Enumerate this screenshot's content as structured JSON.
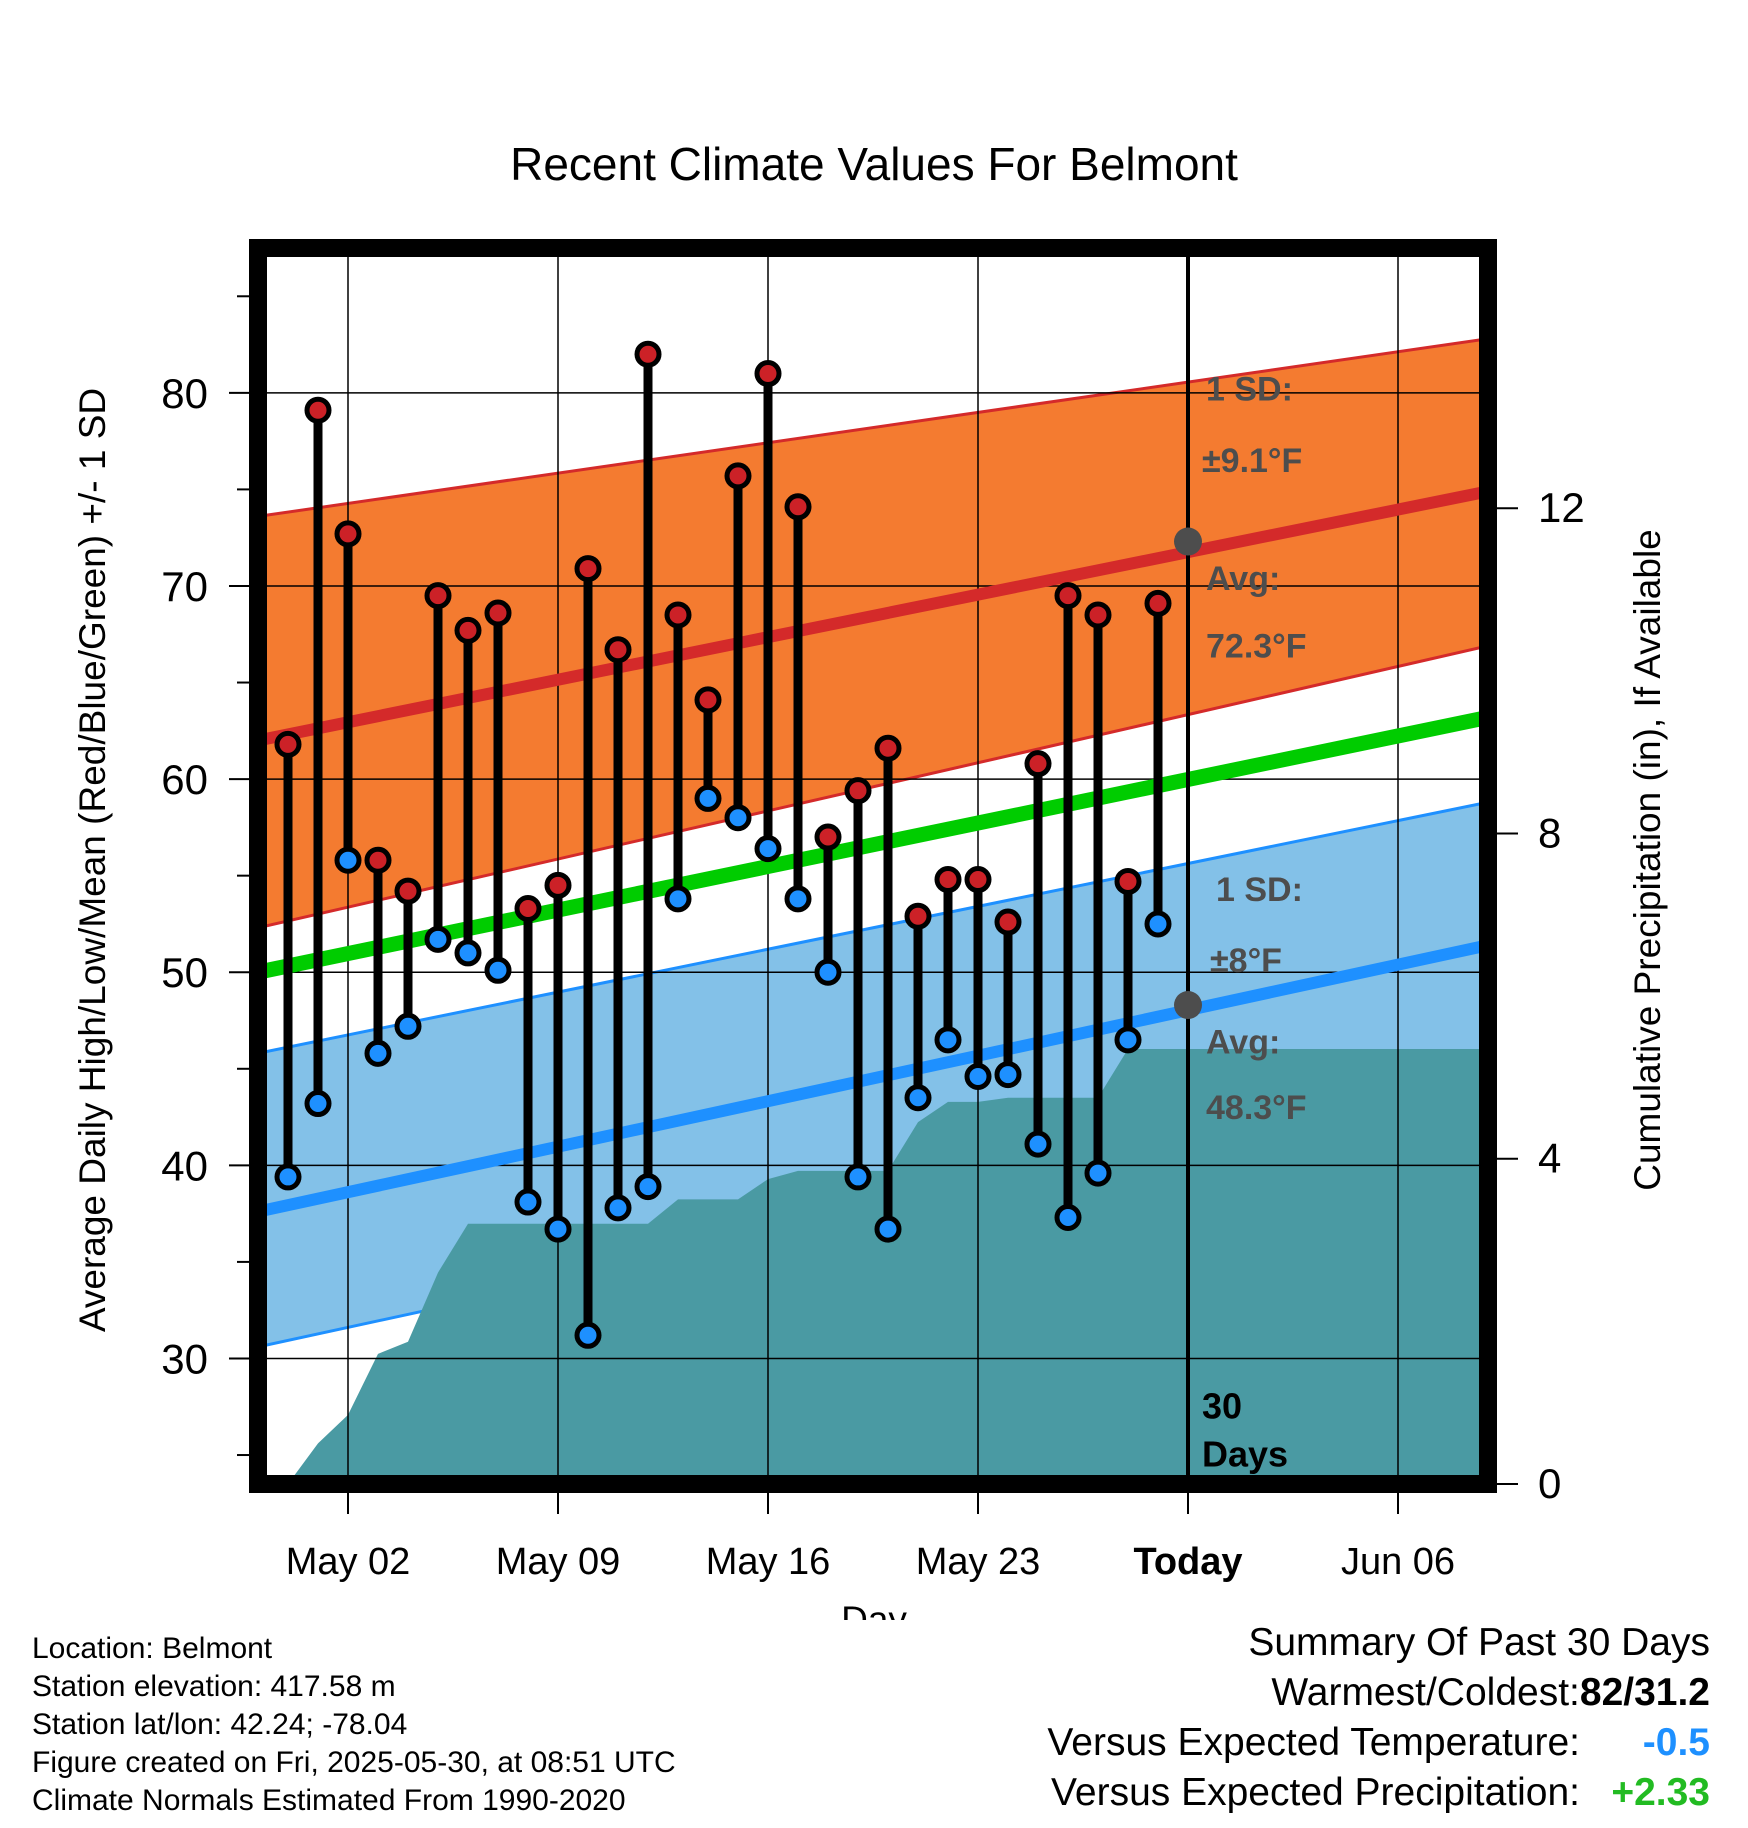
{
  "chart_data": {
    "type": "line",
    "title": "Recent Climate Values For Belmont",
    "xlabel": "Day",
    "ylabel": "Average Daily High/Low/Mean (Red/Blue/Green) +/- 1 SD",
    "ylabel_right": "Cumulative Precipitation (in), If Available",
    "x_tick_labels": [
      "May 02",
      "May 09",
      "May 16",
      "May 23",
      "Today",
      "Jun 06"
    ],
    "x_range": [
      "2025-04-29",
      "2025-06-09"
    ],
    "ylim": [
      23.5,
      87.5
    ],
    "y_ticks": [
      30,
      40,
      50,
      60,
      70,
      80
    ],
    "ylim_right": [
      0,
      15.2
    ],
    "y_ticks_right": [
      0,
      4,
      8,
      12
    ],
    "grid": true,
    "dates": [
      "2025-04-30",
      "2025-05-01",
      "2025-05-02",
      "2025-05-03",
      "2025-05-04",
      "2025-05-05",
      "2025-05-06",
      "2025-05-07",
      "2025-05-08",
      "2025-05-09",
      "2025-05-10",
      "2025-05-11",
      "2025-05-12",
      "2025-05-13",
      "2025-05-14",
      "2025-05-15",
      "2025-05-16",
      "2025-05-17",
      "2025-05-18",
      "2025-05-19",
      "2025-05-20",
      "2025-05-21",
      "2025-05-22",
      "2025-05-23",
      "2025-05-24",
      "2025-05-25",
      "2025-05-26",
      "2025-05-27",
      "2025-05-28",
      "2025-05-29"
    ],
    "series": [
      {
        "name": "High",
        "color": "#cc2127",
        "values": [
          61.8,
          79.1,
          72.7,
          55.8,
          54.2,
          69.5,
          67.7,
          68.6,
          53.3,
          54.5,
          70.9,
          66.7,
          82.0,
          68.5,
          64.1,
          75.7,
          81.0,
          74.1,
          57.0,
          59.4,
          61.6,
          52.9,
          54.8,
          54.8,
          52.6,
          60.8,
          69.5,
          68.5,
          54.7,
          69.1
        ]
      },
      {
        "name": "Low",
        "color": "#1e90ff",
        "values": [
          39.4,
          43.2,
          55.8,
          45.8,
          47.2,
          51.7,
          51.0,
          50.1,
          38.1,
          36.7,
          31.2,
          37.8,
          38.9,
          53.8,
          59.0,
          58.0,
          56.4,
          53.8,
          50.0,
          39.4,
          36.7,
          43.5,
          46.5,
          44.6,
          44.7,
          41.1,
          37.3,
          39.6,
          46.5,
          52.5
        ]
      }
    ],
    "normals": {
      "dates": [
        "2025-04-29",
        "2025-06-09"
      ],
      "high_avg": [
        62.0,
        74.9
      ],
      "high_upper": [
        73.6,
        82.8
      ],
      "high_lower": [
        52.3,
        66.9
      ],
      "low_avg": [
        37.6,
        51.4
      ],
      "low_upper": [
        45.8,
        58.8
      ],
      "low_lower": [
        30.6,
        44.4
      ],
      "mean": [
        50.0,
        63.2
      ],
      "band_colors": {
        "high": "#f47b30",
        "low": "#83c1e8",
        "mean": "#00cc00"
      }
    },
    "precipitation": {
      "color": "#4a9aa3",
      "dates": [
        "2025-04-30",
        "2025-05-01",
        "2025-05-02",
        "2025-05-03",
        "2025-05-04",
        "2025-05-05",
        "2025-05-06",
        "2025-05-07",
        "2025-05-08",
        "2025-05-09",
        "2025-05-10",
        "2025-05-11",
        "2025-05-12",
        "2025-05-13",
        "2025-05-14",
        "2025-05-15",
        "2025-05-16",
        "2025-05-17",
        "2025-05-18",
        "2025-05-19",
        "2025-05-20",
        "2025-05-21",
        "2025-05-22",
        "2025-05-23",
        "2025-05-24",
        "2025-05-25",
        "2025-05-26",
        "2025-05-27",
        "2025-05-28",
        "2025-05-29",
        "2025-06-09"
      ],
      "cumulative": [
        0.0,
        0.5,
        0.85,
        1.6,
        1.75,
        2.6,
        3.2,
        3.2,
        3.2,
        3.2,
        3.2,
        3.2,
        3.2,
        3.5,
        3.5,
        3.5,
        3.75,
        3.85,
        3.85,
        3.85,
        3.85,
        4.45,
        4.7,
        4.7,
        4.75,
        4.75,
        4.75,
        4.75,
        5.35,
        5.35,
        5.35
      ]
    },
    "annotations": {
      "high_sd_label": "1 SD:",
      "high_sd_value": "±9.1°F",
      "high_avg_label": "Avg:",
      "high_avg_value": "72.3°F",
      "high_avg_today": 72.3,
      "low_sd_label": "1 SD:",
      "low_sd_value": "±8°F",
      "low_avg_label": "Avg:",
      "low_avg_value": "48.3°F",
      "low_avg_today": 48.3,
      "period_number": "30",
      "period_unit": "Days",
      "today_date": "2025-05-30"
    }
  },
  "info": {
    "location": "Location: Belmont",
    "elevation": "Station elevation: 417.58 m",
    "latlon": "Station lat/lon: 42.24; -78.04",
    "created": "Figure created on Fri, 2025-05-30, at 08:51 UTC",
    "normals": "Climate Normals Estimated From 1990-2020"
  },
  "summary": {
    "title": "Summary Of Past 30 Days",
    "warmest_label": "Warmest/Coldest:",
    "warmest_value": "82/31.2",
    "temp_label": "Versus Expected Temperature:",
    "temp_value": "-0.5",
    "temp_color": "#1e90ff",
    "precip_label": "Versus Expected Precipitation:",
    "precip_value": "+2.33",
    "precip_color": "#22bb22"
  }
}
